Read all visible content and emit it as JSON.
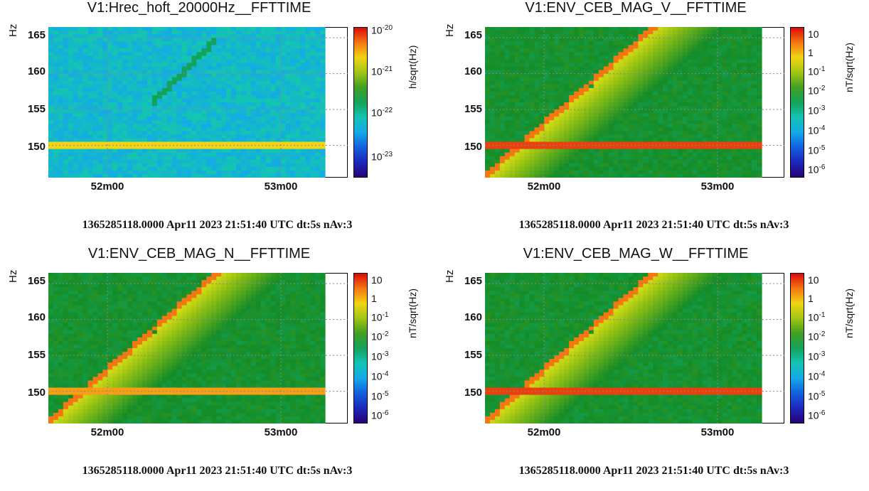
{
  "chart_data": [
    {
      "type": "heatmap",
      "title": "V1:Hrec_hoft_20000Hz__FFTTIME",
      "ylabel": "Hz",
      "zlabel": "h/sqrt(Hz)",
      "ylim": [
        145.5,
        166.5
      ],
      "yticks": [
        "150",
        "155",
        "160",
        "165"
      ],
      "xticks": [
        "52m00",
        "53m00"
      ],
      "colorbar": [
        "10",
        "-20",
        "10",
        "-21",
        "10",
        "-22",
        "10",
        "-23"
      ],
      "footer": "1365285118.0000 Apr11 2023 21:51:40 UTC dt:5s nAv:3",
      "z_scale": "log",
      "z_range": [
        1e-23,
        1e-20
      ],
      "line_hz": 150,
      "chirp": "faint"
    },
    {
      "type": "heatmap",
      "title": "V1:ENV_CEB_MAG_V__FFTTIME",
      "ylabel": "Hz",
      "zlabel": "nT/sqrt(Hz)",
      "ylim": [
        145.5,
        166.5
      ],
      "yticks": [
        "150",
        "155",
        "160",
        "165"
      ],
      "xticks": [
        "52m00",
        "53m00"
      ],
      "colorbar": [
        "10",
        "1",
        "10",
        "-1",
        "10",
        "-2",
        "10",
        "-3",
        "10",
        "-4",
        "10",
        "-5",
        "10",
        "-6"
      ],
      "footer": "1365285118.0000 Apr11 2023 21:51:40 UTC dt:5s nAv:3",
      "z_scale": "log",
      "z_range": [
        1e-06,
        10
      ],
      "line_hz": 150,
      "chirp": "strong"
    },
    {
      "type": "heatmap",
      "title": "V1:ENV_CEB_MAG_N__FFTTIME",
      "ylabel": "Hz",
      "zlabel": "nT/sqrt(Hz)",
      "ylim": [
        145.5,
        166.5
      ],
      "yticks": [
        "150",
        "155",
        "160",
        "165"
      ],
      "xticks": [
        "52m00",
        "53m00"
      ],
      "colorbar": [
        "10",
        "1",
        "10",
        "-1",
        "10",
        "-2",
        "10",
        "-3",
        "10",
        "-4",
        "10",
        "-5",
        "10",
        "-6"
      ],
      "footer": "1365285118.0000 Apr11 2023 21:51:40 UTC dt:5s nAv:3",
      "z_scale": "log",
      "z_range": [
        1e-06,
        10
      ],
      "line_hz": 150,
      "chirp": "strong"
    },
    {
      "type": "heatmap",
      "title": "V1:ENV_CEB_MAG_W__FFTTIME",
      "ylabel": "Hz",
      "zlabel": "nT/sqrt(Hz)",
      "ylim": [
        145.5,
        166.5
      ],
      "yticks": [
        "150",
        "155",
        "160",
        "165"
      ],
      "xticks": [
        "52m00",
        "53m00"
      ],
      "colorbar": [
        "10",
        "1",
        "10",
        "-1",
        "10",
        "-2",
        "10",
        "-3",
        "10",
        "-4",
        "10",
        "-5",
        "10",
        "-6"
      ],
      "footer": "1365285118.0000 Apr11 2023 21:51:40 UTC dt:5s nAv:3",
      "z_scale": "log",
      "z_range": [
        1e-06,
        10
      ],
      "line_hz": 150,
      "chirp": "strong"
    }
  ]
}
